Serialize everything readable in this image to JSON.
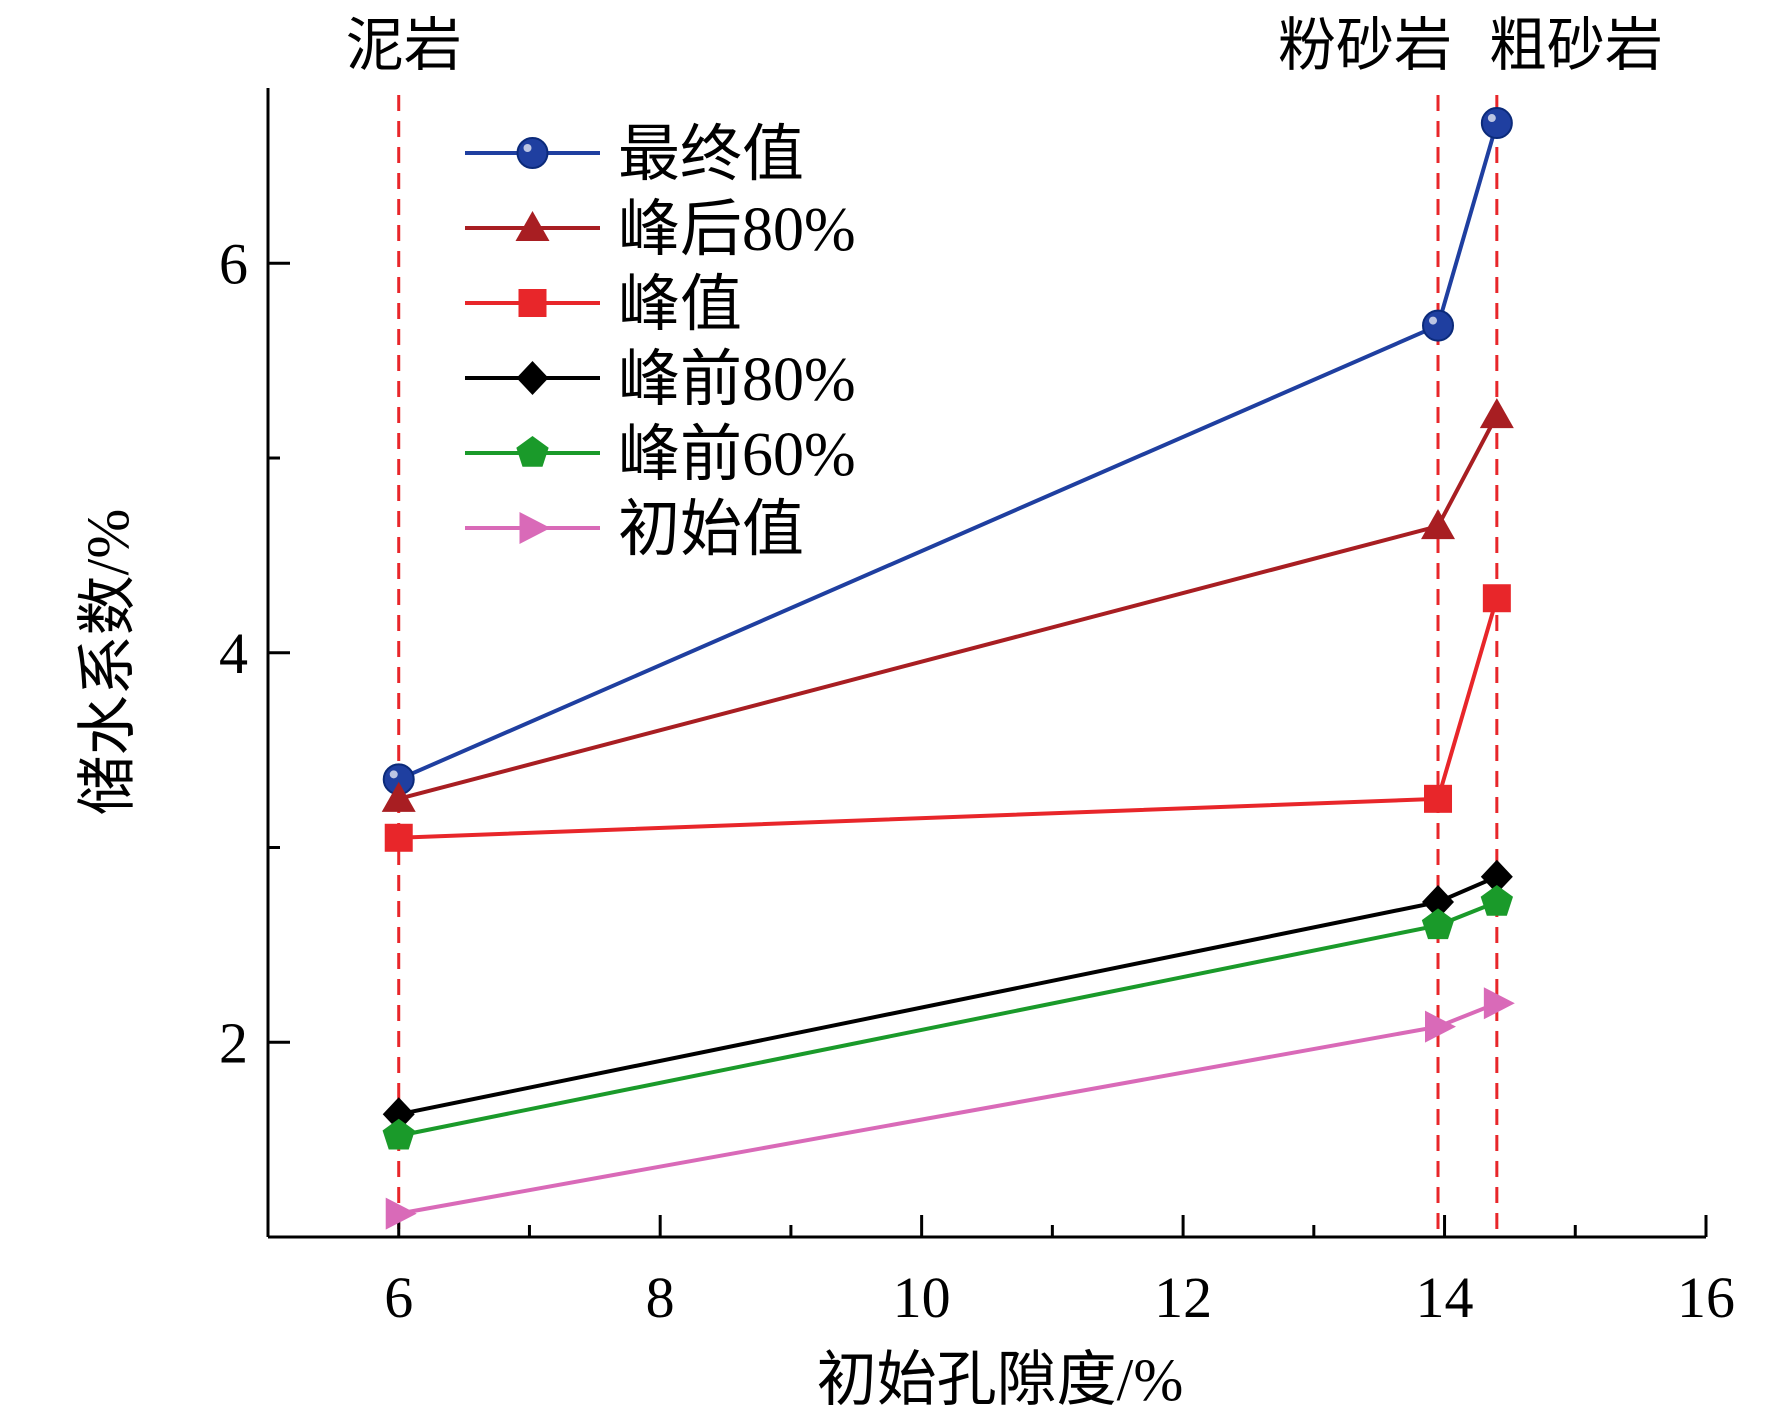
{
  "chart_data": {
    "type": "line",
    "xlabel": "初始孔隙度/%",
    "ylabel": "储水系数/%",
    "xlim": [
      5,
      16
    ],
    "ylim": [
      1,
      6.9
    ],
    "xticks": [
      "6",
      "8",
      "10",
      "12",
      "14",
      "16"
    ],
    "yticks": [
      "2",
      "4",
      "6"
    ],
    "grid": false,
    "legend_position": "top-left",
    "x": [
      6,
      13.95,
      14.4
    ],
    "rock_labels": [
      {
        "x": 6,
        "text": "泥岩"
      },
      {
        "x": 13.95,
        "text": "粉砂岩"
      },
      {
        "x": 14.4,
        "text": "粗砂岩"
      }
    ],
    "series": [
      {
        "name": "最终值",
        "values": [
          3.35,
          5.68,
          6.72
        ],
        "color": "#1f3fa0",
        "marker": "circle"
      },
      {
        "name": "峰后80%",
        "values": [
          3.25,
          4.65,
          5.22
        ],
        "color": "#a81e22",
        "marker": "triangle-up"
      },
      {
        "name": "峰值",
        "values": [
          3.05,
          3.25,
          4.28
        ],
        "color": "#e8262a",
        "marker": "square"
      },
      {
        "name": "峰前80%",
        "values": [
          1.63,
          2.72,
          2.85
        ],
        "color": "#000000",
        "marker": "diamond"
      },
      {
        "name": "峰前60%",
        "values": [
          1.52,
          2.6,
          2.72
        ],
        "color": "#1a9a2a",
        "marker": "pentagon"
      },
      {
        "name": "初始值",
        "values": [
          1.12,
          2.08,
          2.2
        ],
        "color": "#d96ab8",
        "marker": "triangle-right"
      }
    ]
  }
}
